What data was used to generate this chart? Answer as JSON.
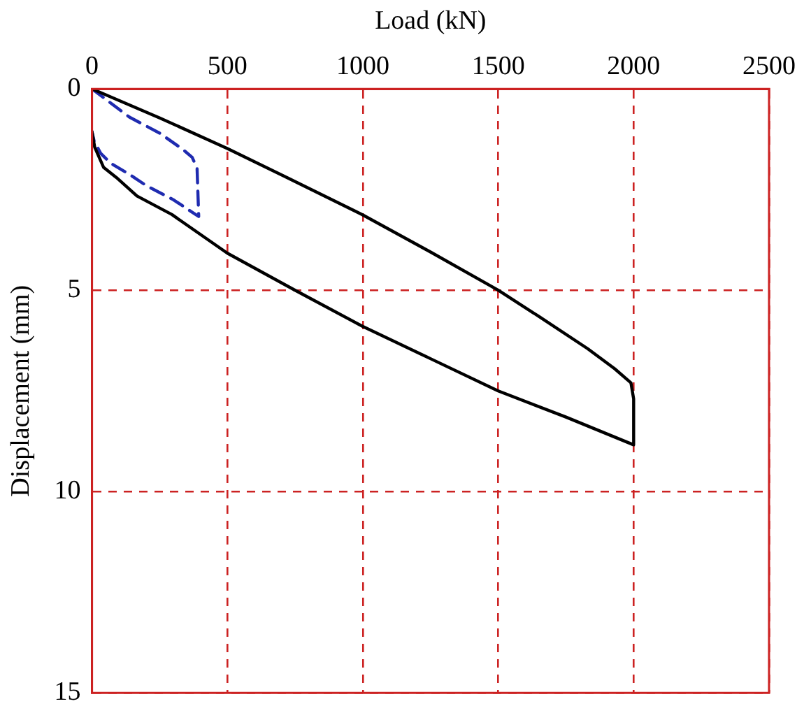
{
  "chart_data": {
    "type": "line",
    "xlabel": "Load (kN)",
    "ylabel": "Displacement (mm)",
    "xlim": [
      0,
      2500
    ],
    "xticks": [
      0,
      500,
      1000,
      1500,
      2000,
      2500
    ],
    "ylim": [
      15,
      0
    ],
    "yticks": [
      0,
      5,
      10,
      15
    ],
    "grid": true,
    "marker": "none",
    "series": [
      {
        "color": "#000000",
        "line_style": "solid",
        "x": [
          0,
          250,
          500,
          750,
          1000,
          1250,
          1500,
          1650,
          1830,
          1930,
          1990,
          2000,
          2000,
          1750,
          1500,
          1250,
          1000,
          750,
          500,
          295,
          166,
          90,
          43,
          10,
          0
        ],
        "values": [
          0,
          0.72,
          1.48,
          2.3,
          3.13,
          4.05,
          5.0,
          5.65,
          6.45,
          6.95,
          7.3,
          7.7,
          8.84,
          8.15,
          7.5,
          6.7,
          5.9,
          5.0,
          4.08,
          3.12,
          2.66,
          2.2,
          1.95,
          1.45,
          1.06
        ]
      },
      {
        "color": "#1f2bb0",
        "line_style": "dashed",
        "x": [
          0,
          138,
          250,
          335,
          370,
          388,
          394,
          300,
          200,
          133,
          70,
          32,
          8,
          0
        ],
        "values": [
          0,
          0.7,
          1.1,
          1.5,
          1.7,
          1.97,
          3.17,
          2.75,
          2.4,
          2.1,
          1.85,
          1.6,
          1.3,
          1.06
        ]
      }
    ]
  }
}
